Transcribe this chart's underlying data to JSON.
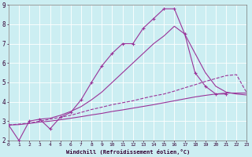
{
  "xlabel": "Windchill (Refroidissement éolien,°C)",
  "bg_color": "#cceef2",
  "grid_color": "#aadddd",
  "line_color": "#993399",
  "xlim": [
    0,
    23
  ],
  "ylim": [
    2,
    9
  ],
  "yticks": [
    2,
    3,
    4,
    5,
    6,
    7,
    8,
    9
  ],
  "xticks": [
    0,
    1,
    2,
    3,
    4,
    5,
    6,
    7,
    8,
    9,
    10,
    11,
    12,
    13,
    14,
    15,
    16,
    17,
    18,
    19,
    20,
    21,
    22,
    23
  ],
  "series1_x": [
    0,
    1,
    2,
    3,
    4,
    5,
    6,
    7,
    8,
    9,
    10,
    11,
    12,
    13,
    14,
    15,
    16,
    17,
    18,
    19,
    20,
    21
  ],
  "series1_y": [
    2.8,
    2.0,
    3.0,
    3.1,
    2.6,
    3.2,
    3.45,
    4.1,
    5.0,
    5.85,
    6.5,
    7.0,
    7.0,
    7.8,
    8.3,
    8.8,
    8.8,
    7.5,
    5.5,
    4.8,
    4.4,
    4.4
  ],
  "series2_x": [
    3,
    4,
    5,
    6,
    7,
    8,
    9,
    10,
    11,
    12,
    13,
    14,
    15,
    16,
    17,
    18,
    19,
    20,
    21,
    22,
    23
  ],
  "series2_y": [
    3.1,
    3.15,
    3.3,
    3.5,
    3.75,
    4.1,
    4.5,
    5.0,
    5.5,
    6.0,
    6.5,
    7.0,
    7.4,
    7.9,
    7.5,
    6.5,
    5.5,
    4.8,
    4.5,
    4.4,
    4.35
  ],
  "series3_x": [
    0,
    1,
    2,
    3,
    4,
    5,
    6,
    7,
    8,
    9,
    10,
    11,
    12,
    13,
    14,
    15,
    16,
    17,
    18,
    19,
    20,
    21,
    22,
    23
  ],
  "series3_y": [
    2.8,
    2.85,
    2.9,
    3.0,
    3.1,
    3.2,
    3.3,
    3.45,
    3.6,
    3.72,
    3.85,
    3.95,
    4.05,
    4.18,
    4.3,
    4.4,
    4.55,
    4.72,
    4.88,
    5.05,
    5.2,
    5.35,
    5.4,
    4.45
  ],
  "series4_x": [
    0,
    1,
    2,
    3,
    4,
    5,
    6,
    7,
    8,
    9,
    10,
    11,
    12,
    13,
    14,
    15,
    16,
    17,
    18,
    19,
    20,
    21,
    22,
    23
  ],
  "series4_y": [
    2.8,
    2.82,
    2.88,
    2.95,
    3.0,
    3.07,
    3.15,
    3.23,
    3.32,
    3.4,
    3.5,
    3.58,
    3.67,
    3.76,
    3.85,
    3.95,
    4.05,
    4.15,
    4.25,
    4.33,
    4.4,
    4.45,
    4.45,
    4.45
  ]
}
